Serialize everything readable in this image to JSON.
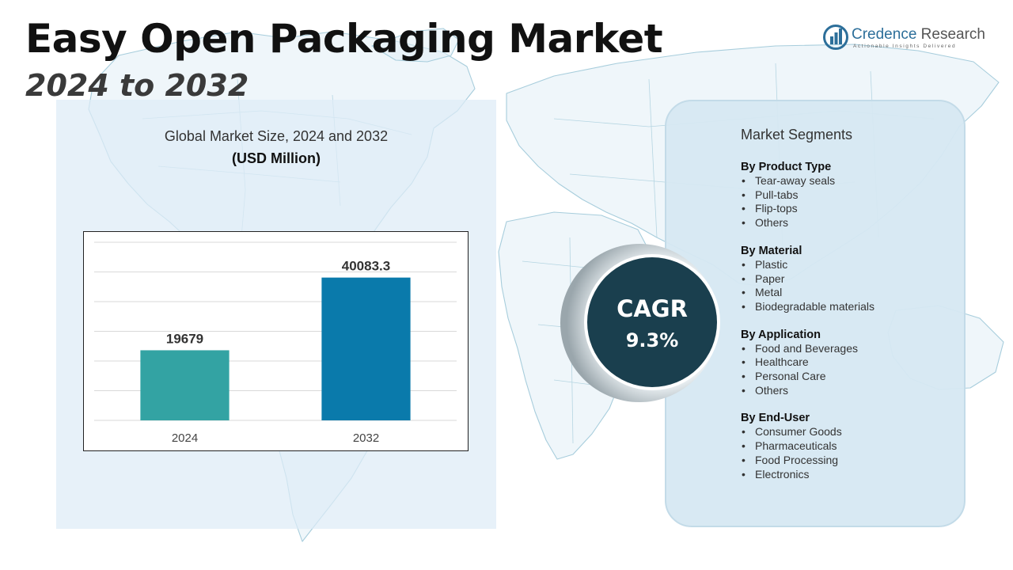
{
  "header": {
    "title": "Easy Open Packaging Market",
    "subtitle": "2024 to 2032"
  },
  "logo": {
    "name_primary": "Credence",
    "name_secondary": "Research",
    "tagline": "Actionable Insights Delivered",
    "icon": "bar-chart-globe-icon",
    "brand_color": "#2d6f9a"
  },
  "chart_heading": {
    "title": "Global Market Size, 2024 and 2032",
    "unit": "(USD Million)"
  },
  "chart_data": {
    "type": "bar",
    "title": "Global Market Size, 2024 and 2032",
    "subtitle": "(USD Million)",
    "categories": [
      "2024",
      "2032"
    ],
    "values": [
      19679,
      40083.3
    ],
    "value_labels": [
      "19679",
      "40083.3"
    ],
    "colors": [
      "#33a3a3",
      "#0a7aab"
    ],
    "ylim": [
      0,
      50000
    ],
    "grid": true,
    "legend": "none",
    "xlabel": "",
    "ylabel": ""
  },
  "cagr": {
    "label": "CAGR",
    "value": "9.3%",
    "color": "#1a3f4e"
  },
  "segments": {
    "title": "Market Segments",
    "groups": [
      {
        "heading": "By Product Type",
        "items": [
          "Tear-away seals",
          "Pull-tabs",
          "Flip-tops",
          "Others"
        ]
      },
      {
        "heading": "By Material",
        "items": [
          "Plastic",
          "Paper",
          "Metal",
          "Biodegradable materials"
        ]
      },
      {
        "heading": "By Application",
        "items": [
          "Food and Beverages",
          "Healthcare",
          "Personal Care",
          "Others"
        ]
      },
      {
        "heading": "By End-User",
        "items": [
          "Consumer Goods",
          "Pharmaceuticals",
          "Food Processing",
          "Electronics"
        ]
      }
    ]
  },
  "background": {
    "icon": "world-map-icon",
    "stroke_color": "#9cc6d8"
  }
}
